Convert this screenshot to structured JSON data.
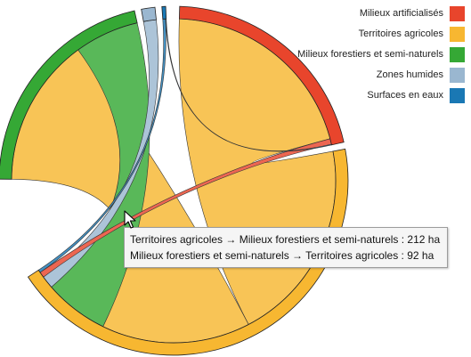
{
  "chart_data": {
    "type": "chord",
    "title": "",
    "unit": "ha",
    "categories": [
      {
        "name": "Milieux artificialisés",
        "color": "#e8452c"
      },
      {
        "name": "Territoires agricoles",
        "color": "#f7b731"
      },
      {
        "name": "Milieux forestiers et semi-naturels",
        "color": "#35a835"
      },
      {
        "name": "Zones humides",
        "color": "#9ab7d0"
      },
      {
        "name": "Surfaces en eaux",
        "color": "#1a78b4"
      }
    ],
    "flows": [
      {
        "from": "Territoires agricoles",
        "to": "Milieux artificialisés",
        "value": 290
      },
      {
        "from": "Milieux artificialisés",
        "to": "Territoires agricoles",
        "value": 8
      },
      {
        "from": "Territoires agricoles",
        "to": "Milieux forestiers et semi-naturels",
        "value": 212
      },
      {
        "from": "Milieux forestiers et semi-naturels",
        "to": "Territoires agricoles",
        "value": 92
      },
      {
        "from": "Zones humides",
        "to": "Territoires agricoles",
        "value": 18
      },
      {
        "from": "Surfaces en eaux",
        "to": "Territoires agricoles",
        "value": 4
      },
      {
        "from": "Surfaces en eaux",
        "to": "Milieux artificialisés",
        "value": 1
      }
    ],
    "legend_position": "top-right",
    "tooltip": [
      "Territoires agricoles → Milieux forestiers et semi-naturels : 212 ha",
      "Milieux forestiers et semi-naturels → Territoires agricoles : 92 ha"
    ]
  }
}
